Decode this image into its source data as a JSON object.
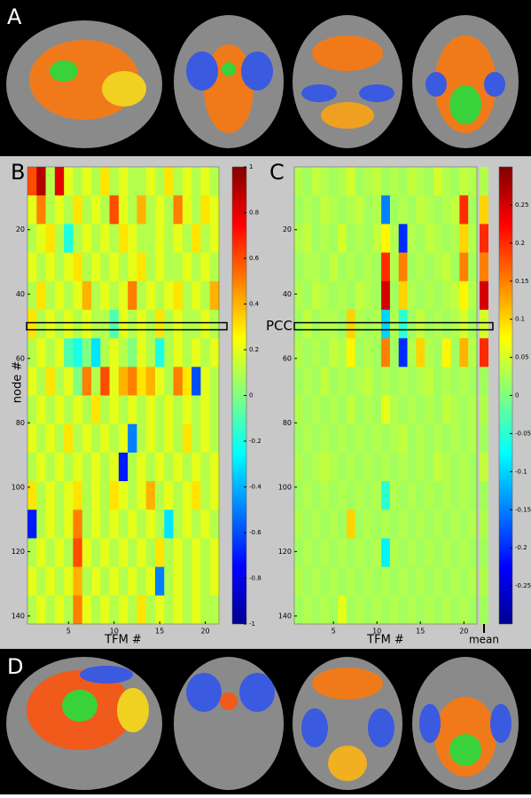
{
  "panels": {
    "a": "A",
    "d": "D"
  },
  "chart_data": [
    {
      "type": "heatmap",
      "panel_label": "B",
      "ylabel": "node #",
      "xlabel": "TFM #",
      "colormap": "jet",
      "xlim": [
        0.5,
        21.5
      ],
      "ylim": [
        0.5,
        142.5
      ],
      "xticks": [
        5,
        10,
        15,
        20
      ],
      "yticks": [
        20,
        40,
        60,
        80,
        100,
        120,
        140
      ],
      "clim": [
        -1,
        1
      ],
      "cticks": [
        -1,
        -0.8,
        -0.6,
        -0.4,
        -0.2,
        0,
        0.2,
        0.4,
        0.6,
        0.8,
        1
      ],
      "highlight_row": 50,
      "values": [
        [
          0.6,
          0.9,
          0.1,
          0.8,
          0.2,
          0.1,
          0.2,
          0.1,
          0.3,
          0.1,
          0.2,
          0.1,
          0.1,
          0.2,
          0.1,
          0.3,
          0.1,
          0.2,
          0.1,
          0.2,
          0.1
        ],
        [
          0.2,
          0.5,
          0.1,
          0.2,
          0.1,
          0.3,
          0.1,
          0.2,
          0.1,
          0.6,
          0.2,
          0.1,
          0.4,
          0.1,
          0.2,
          0.1,
          0.5,
          0.2,
          0.1,
          0.3,
          0.2
        ],
        [
          0.1,
          0.2,
          0.3,
          0.1,
          -0.2,
          0.1,
          0.2,
          0.1,
          0.2,
          0.1,
          0.3,
          0.2,
          0.1,
          0.1,
          0.2,
          0.1,
          0.2,
          0.1,
          0.3,
          0.1,
          0.2
        ],
        [
          0.2,
          0.1,
          0.2,
          0.1,
          0.2,
          0.3,
          0.1,
          0.2,
          0.1,
          0.2,
          0.1,
          0.2,
          0.3,
          0.1,
          0.2,
          0.1,
          0.1,
          0.2,
          0.1,
          0.2,
          0.1
        ],
        [
          0.1,
          0.3,
          0.1,
          0.2,
          0.1,
          0.2,
          0.4,
          0.1,
          0.2,
          0.1,
          0.2,
          0.5,
          0.1,
          0.2,
          0.1,
          0.2,
          0.3,
          0.1,
          0.2,
          0.1,
          0.4
        ],
        [
          0.3,
          0.1,
          0.2,
          0.1,
          0.2,
          0.1,
          0.2,
          0.1,
          0.1,
          -0.1,
          0.2,
          0.1,
          0.2,
          0.1,
          0.3,
          0.1,
          0.2,
          0.1,
          0.1,
          0.2,
          0.1
        ],
        [
          0.1,
          0.2,
          0.1,
          0.2,
          -0.1,
          -0.2,
          0,
          -0.3,
          0.1,
          0.2,
          0.1,
          0,
          0.2,
          0.1,
          -0.2,
          0.1,
          0.2,
          0.1,
          0.2,
          0.1,
          0.2
        ],
        [
          0.2,
          0.1,
          0.3,
          0.1,
          0.2,
          0,
          0.5,
          0.1,
          0.6,
          0.2,
          0.4,
          0.5,
          0.3,
          0.4,
          0.2,
          0.1,
          0.5,
          0.3,
          -0.6,
          0.2,
          0.1
        ],
        [
          0.1,
          0.2,
          0.1,
          0.2,
          0.1,
          0.2,
          0.1,
          0.3,
          0.1,
          0.2,
          0.1,
          0.2,
          0.1,
          0.2,
          0.1,
          0.2,
          0.1,
          0.2,
          0.1,
          0.2,
          0.1
        ],
        [
          0.2,
          0.1,
          0.2,
          0.1,
          0.3,
          0.1,
          0.2,
          0.1,
          0.2,
          0.1,
          0.2,
          -0.5,
          0.1,
          0.2,
          0.1,
          0.2,
          0.1,
          0.3,
          0.1,
          0.2,
          0.1
        ],
        [
          0.1,
          0.2,
          0.1,
          0.2,
          0.1,
          0.2,
          0.1,
          0.2,
          0.1,
          0.2,
          -0.7,
          0.1,
          0.2,
          0.1,
          0.2,
          0.1,
          0.2,
          0.1,
          0.2,
          0.1,
          0.2
        ],
        [
          0.3,
          0.1,
          0.2,
          0.1,
          0.2,
          0.3,
          0.1,
          0.2,
          0.1,
          0.3,
          0.2,
          0.1,
          0.2,
          0.4,
          0.1,
          0.2,
          0.1,
          0.2,
          0.3,
          0.1,
          0.2
        ],
        [
          -0.7,
          0.1,
          0.2,
          0.1,
          0.2,
          0.5,
          0.1,
          0.2,
          0.1,
          0.2,
          0.1,
          0.2,
          0.1,
          0.2,
          0.1,
          -0.3,
          0.1,
          0.2,
          0.1,
          0.2,
          0.1
        ],
        [
          0.1,
          0.2,
          0.1,
          0.2,
          0.1,
          0.6,
          0.2,
          0.1,
          0.2,
          0.1,
          0.2,
          0.1,
          0.2,
          0.1,
          0.3,
          0.1,
          0.2,
          0.1,
          0.2,
          0.1,
          0.2
        ],
        [
          0.2,
          0.1,
          0.2,
          0.1,
          0.2,
          0.4,
          0.1,
          0.2,
          0.1,
          0.2,
          0.1,
          0.2,
          0.1,
          0.2,
          -0.5,
          0.1,
          0.2,
          0.1,
          0.2,
          0.1,
          0.2
        ],
        [
          0.1,
          0.2,
          0.1,
          0.2,
          0.1,
          0.5,
          0.2,
          0.1,
          0.2,
          0.1,
          0.2,
          0.1,
          0.3,
          0.1,
          0.2,
          0.1,
          0.2,
          0.1,
          0.2,
          0.1,
          0.1
        ]
      ]
    },
    {
      "type": "heatmap",
      "panel_label": "C",
      "xlabel": "TFM #",
      "colormap": "jet",
      "annotation": "PCC",
      "mean_label": "mean",
      "xlim": [
        0.5,
        21.5
      ],
      "ylim": [
        0.5,
        142.5
      ],
      "xticks": [
        5,
        10,
        15,
        20
      ],
      "yticks": [
        20,
        40,
        60,
        80,
        100,
        120,
        140
      ],
      "clim": [
        -0.3,
        0.3
      ],
      "cticks": [
        -0.25,
        -0.2,
        -0.15,
        -0.1,
        -0.05,
        0,
        0.05,
        0.1,
        0.15,
        0.2,
        0.25
      ],
      "highlight_row": 50,
      "values": [
        [
          0.03,
          0.02,
          0.04,
          0.03,
          0.02,
          0.03,
          0.05,
          0.02,
          0.03,
          0.04,
          0.02,
          0.03,
          0.02,
          0.04,
          0.03,
          0.02,
          0.05,
          0.03,
          0.02,
          0.04,
          0.03
        ],
        [
          0.02,
          0.03,
          0.02,
          0.04,
          0.03,
          0.02,
          0.03,
          0.04,
          0.02,
          0.03,
          -0.15,
          0.02,
          0.03,
          0.02,
          0.04,
          0.03,
          0.02,
          0.03,
          0.04,
          0.2,
          0.02
        ],
        [
          0.03,
          0.04,
          0.02,
          0.03,
          0.02,
          0.05,
          0.02,
          0.03,
          0.02,
          0.04,
          0.08,
          0.03,
          -0.2,
          0.03,
          0.02,
          0.04,
          0.03,
          0.02,
          0.03,
          0.1,
          0.03
        ],
        [
          0.02,
          0.03,
          0.03,
          0.02,
          0.04,
          0.02,
          0.03,
          0.02,
          0.03,
          0.02,
          0.2,
          0.03,
          0.15,
          0.02,
          0.03,
          0.02,
          0.03,
          0.04,
          0.02,
          0.15,
          0.02
        ],
        [
          0.03,
          0.02,
          0.04,
          0.03,
          0.02,
          0.03,
          0.02,
          0.04,
          0.03,
          0.02,
          0.25,
          0.02,
          0.1,
          0.03,
          0.02,
          0.03,
          0.02,
          0.03,
          0.04,
          0.08,
          0.03
        ],
        [
          0.02,
          0.04,
          0.02,
          0.03,
          0.03,
          0.02,
          0.1,
          0.03,
          0.02,
          0.03,
          -0.1,
          0.03,
          -0.05,
          0.02,
          0.04,
          0.02,
          0.03,
          0.02,
          0.03,
          0.05,
          0.02
        ],
        [
          0.03,
          0.02,
          0.03,
          0.02,
          0.04,
          0.03,
          0.08,
          0.02,
          0.03,
          0.02,
          0.15,
          0.02,
          -0.2,
          0.03,
          0.1,
          0.03,
          0.02,
          0.08,
          0.02,
          0.12,
          0.03
        ],
        [
          0.02,
          0.03,
          0.02,
          0.04,
          0.02,
          0.03,
          0.02,
          0.03,
          0.04,
          0.02,
          0.03,
          0.02,
          0.03,
          0.02,
          0.03,
          0.04,
          0.02,
          0.03,
          0.02,
          0.03,
          0.02
        ],
        [
          0.03,
          0.02,
          0.03,
          0.02,
          0.03,
          0.02,
          0.04,
          0.02,
          0.03,
          0.02,
          0.06,
          0.03,
          0.02,
          0.03,
          0.02,
          0.03,
          0.02,
          0.04,
          0.03,
          0.02,
          0.03
        ],
        [
          0.02,
          0.03,
          0.02,
          0.03,
          0.02,
          0.03,
          0.02,
          0.03,
          0.02,
          0.03,
          0.02,
          0.03,
          0.04,
          0.02,
          0.03,
          0.02,
          0.03,
          0.02,
          0.03,
          0.02,
          0.03
        ],
        [
          0.03,
          0.02,
          0.03,
          0.04,
          0.03,
          0.02,
          0.03,
          0.02,
          0.03,
          0.02,
          0.03,
          0.02,
          0.03,
          0.02,
          0.03,
          0.02,
          0.04,
          0.03,
          0.02,
          0.03,
          0.02
        ],
        [
          0.02,
          0.03,
          0.02,
          0.03,
          0.02,
          0.03,
          0.02,
          0.03,
          0.02,
          0.03,
          -0.05,
          0.03,
          0.02,
          0.03,
          0.02,
          0.03,
          0.02,
          0.03,
          0.02,
          0.03,
          0.02
        ],
        [
          0.03,
          0.02,
          0.03,
          0.02,
          0.03,
          0.02,
          0.1,
          0.02,
          0.03,
          0.02,
          0.03,
          0.02,
          0.03,
          0.02,
          0.03,
          0.02,
          0.03,
          0.02,
          0.03,
          0.02,
          0.03
        ],
        [
          0.02,
          0.03,
          0.02,
          0.03,
          0.02,
          0.03,
          0.02,
          0.03,
          0.02,
          0.03,
          -0.08,
          0.03,
          0.02,
          0.03,
          0.02,
          0.03,
          0.02,
          0.03,
          0.02,
          0.03,
          0.02
        ],
        [
          0.03,
          0.02,
          0.03,
          0.02,
          0.03,
          0.02,
          0.03,
          0.02,
          0.03,
          0.02,
          0.03,
          0.02,
          0.03,
          0.02,
          0.03,
          0.02,
          0.03,
          0.02,
          0.03,
          0.02,
          0.03
        ],
        [
          0.02,
          0.03,
          0.02,
          0.03,
          0.02,
          0.06,
          0.02,
          0.03,
          0.02,
          0.03,
          0.02,
          0.03,
          0.02,
          0.03,
          0.02,
          0.03,
          0.02,
          0.03,
          0.02,
          0.03,
          0.02
        ]
      ],
      "mean_values": [
        0.03,
        0.1,
        0.2,
        0.15,
        0.25,
        0.05,
        0.2,
        0.02,
        0.03,
        0.02,
        0.04,
        0.02,
        0.03,
        0.02,
        0.03,
        0.02
      ]
    }
  ]
}
